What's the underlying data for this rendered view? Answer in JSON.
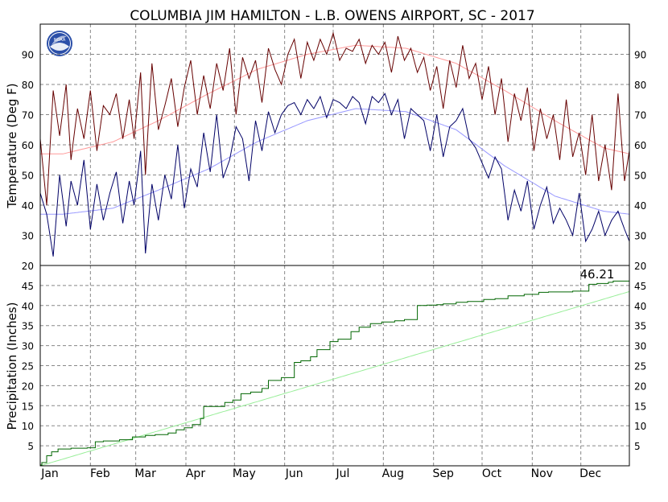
{
  "title": "COLUMBIA JIM HAMILTON - L.B. OWENS AIRPORT, SC - 2017",
  "logo_text": "NOAA",
  "chart_data": [
    {
      "type": "line",
      "id": "temperature",
      "ylabel": "Temperature (Deg F)",
      "ylim": [
        20,
        100
      ],
      "yticks": [
        30,
        40,
        50,
        60,
        70,
        80,
        90
      ],
      "ytick_labels": [
        "30",
        "40",
        "50",
        "60",
        "70",
        "80",
        "90"
      ],
      "grid": true,
      "colors": {
        "daily_high": "#660000",
        "daily_low": "#000066",
        "normal_high": "#ff9999",
        "normal_low": "#9999ff"
      },
      "normal_knots": {
        "x": [
          1,
          15,
          46,
          74,
          105,
          135,
          166,
          196,
          227,
          258,
          288,
          319,
          349,
          365
        ],
        "normal_high": [
          57,
          57,
          61,
          68,
          77,
          85,
          90,
          93,
          92,
          87,
          78,
          68,
          59,
          57
        ],
        "normal_low": [
          37,
          37,
          39,
          45,
          52,
          61,
          68,
          72,
          71,
          65,
          53,
          43,
          38,
          37
        ]
      },
      "daily_knots": {
        "x": [
          1,
          5,
          9,
          13,
          17,
          20,
          24,
          28,
          32,
          36,
          40,
          44,
          48,
          52,
          56,
          59,
          63,
          66,
          70,
          74,
          78,
          82,
          86,
          90,
          94,
          98,
          102,
          106,
          110,
          114,
          118,
          122,
          126,
          130,
          134,
          138,
          142,
          146,
          150,
          154,
          158,
          162,
          166,
          170,
          174,
          178,
          182,
          186,
          190,
          194,
          198,
          202,
          206,
          210,
          214,
          218,
          222,
          226,
          230,
          234,
          238,
          242,
          246,
          250,
          254,
          258,
          262,
          266,
          270,
          274,
          278,
          282,
          286,
          290,
          294,
          298,
          302,
          306,
          310,
          314,
          318,
          322,
          326,
          330,
          334,
          338,
          342,
          346,
          350,
          354,
          358,
          362,
          365
        ],
        "daily_high": [
          62,
          40,
          78,
          63,
          80,
          55,
          72,
          62,
          78,
          58,
          73,
          70,
          77,
          62,
          75,
          62,
          84,
          50,
          87,
          65,
          73,
          82,
          66,
          79,
          88,
          70,
          83,
          72,
          87,
          78,
          92,
          70,
          89,
          82,
          88,
          74,
          92,
          85,
          80,
          90,
          95,
          82,
          94,
          88,
          95,
          90,
          97,
          88,
          92,
          91,
          95,
          87,
          93,
          90,
          94,
          84,
          96,
          88,
          92,
          84,
          89,
          78,
          86,
          72,
          88,
          79,
          93,
          82,
          87,
          75,
          86,
          70,
          82,
          61,
          77,
          68,
          79,
          58,
          72,
          62,
          70,
          55,
          75,
          56,
          64,
          50,
          70,
          48,
          60,
          45,
          77,
          48,
          58
        ],
        "daily_low": [
          44,
          37,
          23,
          50,
          33,
          48,
          40,
          55,
          32,
          47,
          35,
          44,
          51,
          34,
          48,
          40,
          58,
          24,
          47,
          35,
          50,
          42,
          60,
          39,
          52,
          46,
          64,
          51,
          70,
          49,
          55,
          66,
          62,
          48,
          68,
          58,
          71,
          64,
          70,
          73,
          74,
          70,
          75,
          72,
          76,
          69,
          75,
          74,
          72,
          76,
          74,
          67,
          76,
          74,
          77,
          70,
          75,
          62,
          72,
          70,
          68,
          58,
          70,
          56,
          66,
          68,
          72,
          62,
          59,
          54,
          49,
          56,
          52,
          35,
          45,
          38,
          48,
          32,
          40,
          46,
          34,
          39,
          35,
          30,
          44,
          28,
          32,
          38,
          30,
          35,
          38,
          32,
          28
        ]
      }
    },
    {
      "type": "line",
      "id": "precipitation",
      "ylabel": "Precipitation (Inches)",
      "ylim": [
        0,
        50
      ],
      "yticks": [
        5,
        10,
        15,
        20,
        25,
        30,
        35,
        40,
        45
      ],
      "ytick_labels": [
        "5",
        "10",
        "15",
        "20",
        "25",
        "30",
        "35",
        "40",
        "45"
      ],
      "grid": true,
      "colors": {
        "observed_cumulative": "#006600",
        "normal_cumulative": "#99ee99"
      },
      "end_value_label": "46.21",
      "observed_cumulative": {
        "x": [
          1,
          2,
          5,
          8,
          12,
          20,
          30,
          35,
          40,
          50,
          58,
          66,
          72,
          80,
          85,
          90,
          95,
          100,
          102,
          115,
          120,
          125,
          131,
          138,
          142,
          150,
          158,
          162,
          168,
          172,
          180,
          185,
          193,
          198,
          205,
          212,
          220,
          226,
          234,
          240,
          246,
          250,
          258,
          265,
          275,
          282,
          290,
          300,
          309,
          315,
          320,
          330,
          340,
          345,
          352,
          355,
          365
        ],
        "y": [
          0.2,
          0.8,
          2.5,
          3.5,
          4.2,
          4.4,
          4.5,
          6.0,
          6.2,
          6.5,
          7.2,
          7.6,
          7.8,
          8.2,
          9.0,
          9.5,
          10.3,
          11.8,
          14.8,
          15.8,
          16.4,
          18.0,
          18.4,
          19.3,
          21.3,
          22.0,
          25.8,
          26.2,
          27.2,
          29.0,
          31.0,
          31.6,
          33.5,
          34.6,
          35.5,
          35.9,
          36.2,
          36.5,
          40.0,
          40.1,
          40.2,
          40.4,
          40.8,
          41.0,
          41.5,
          41.7,
          42.4,
          42.8,
          43.3,
          43.4,
          43.4,
          43.6,
          45.3,
          45.5,
          45.8,
          46.1,
          46.21
        ]
      },
      "normal_cumulative": {
        "x": [
          1,
          365
        ],
        "y": [
          0,
          43.5
        ]
      }
    }
  ],
  "x_axis": {
    "tick_labels": [
      "Jan",
      "Feb",
      "Mar",
      "Apr",
      "May",
      "Jun",
      "Jul",
      "Aug",
      "Sep",
      "Oct",
      "Nov",
      "Dec"
    ],
    "month_start_days": [
      1,
      32,
      60,
      91,
      121,
      152,
      182,
      213,
      244,
      274,
      305,
      335
    ],
    "days_in_year": 365
  }
}
